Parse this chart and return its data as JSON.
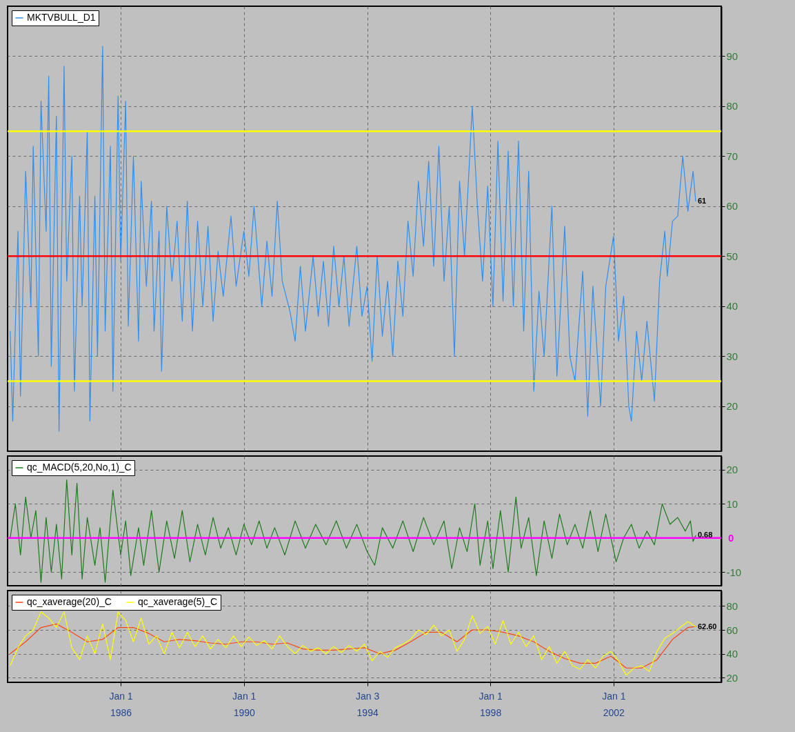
{
  "chart_data": [
    {
      "type": "line",
      "legend": "top left",
      "grid": true,
      "tick_labels": "y",
      "xlim": [
        "1982-05",
        "2005-07"
      ],
      "xticks": [
        {
          "value": "1986-01-01",
          "label": null
        },
        {
          "value": "1990-01-01",
          "label": null
        },
        {
          "value": "1994-01-03",
          "label": null
        },
        {
          "value": "1998-01-01",
          "label": null
        },
        {
          "value": "2002-01-01",
          "label": null
        }
      ],
      "ylim": [
        11,
        100
      ],
      "yticks": [
        20,
        30,
        40,
        50,
        60,
        70,
        80,
        90
      ],
      "ref_lines": [
        {
          "axis": "y",
          "value": 75,
          "color": "#ffff00"
        },
        {
          "axis": "y",
          "value": 50,
          "color": "#ff0000"
        },
        {
          "axis": "y",
          "value": 25,
          "color": "#ffff00"
        }
      ],
      "annotations": [
        {
          "text": "61",
          "x": "2004-09",
          "y": 61
        }
      ],
      "x": [
        "1982-06",
        "1982-07",
        "1982-09",
        "1982-10",
        "1982-12",
        "1983-02",
        "1983-03",
        "1983-05",
        "1983-06",
        "1983-08",
        "1983-09",
        "1983-10",
        "1983-12",
        "1984-01",
        "1984-03",
        "1984-04",
        "1984-06",
        "1984-07",
        "1984-09",
        "1984-10",
        "1984-12",
        "1985-01",
        "1985-03",
        "1985-04",
        "1985-06",
        "1985-07",
        "1985-09",
        "1985-10",
        "1985-12",
        "1986-01",
        "1986-03",
        "1986-04",
        "1986-06",
        "1986-08",
        "1986-09",
        "1986-11",
        "1987-01",
        "1987-02",
        "1987-04",
        "1987-05",
        "1987-07",
        "1987-09",
        "1987-11",
        "1988-01",
        "1988-03",
        "1988-05",
        "1988-07",
        "1988-09",
        "1988-11",
        "1989-01",
        "1989-03",
        "1989-05",
        "1989-08",
        "1989-10",
        "1990-01",
        "1990-03",
        "1990-05",
        "1990-08",
        "1990-10",
        "1990-12",
        "1991-02",
        "1991-04",
        "1991-07",
        "1991-09",
        "1991-11",
        "1992-01",
        "1992-04",
        "1992-06",
        "1992-08",
        "1992-10",
        "1992-12",
        "1993-02",
        "1993-04",
        "1993-06",
        "1993-09",
        "1993-11",
        "1994-01",
        "1994-03",
        "1994-05",
        "1994-07",
        "1994-09",
        "1994-11",
        "1995-01",
        "1995-03",
        "1995-05",
        "1995-07",
        "1995-09",
        "1995-11",
        "1996-01",
        "1996-03",
        "1996-05",
        "1996-07",
        "1996-09",
        "1996-11",
        "1997-01",
        "1997-03",
        "1997-06",
        "1997-08",
        "1997-10",
        "1997-12",
        "1998-02",
        "1998-04",
        "1998-06",
        "1998-08",
        "1998-10",
        "1998-12",
        "1999-02",
        "1999-04",
        "1999-06",
        "1999-08",
        "1999-10",
        "2000-01",
        "2000-03",
        "2000-06",
        "2000-08",
        "2000-10",
        "2001-01",
        "2001-03",
        "2001-05",
        "2001-08",
        "2001-10",
        "2002-01",
        "2002-03",
        "2002-05",
        "2002-07",
        "2002-08",
        "2002-10",
        "2002-12",
        "2003-02",
        "2003-05",
        "2003-07",
        "2003-09",
        "2003-10",
        "2003-12",
        "2004-02",
        "2004-04",
        "2004-06",
        "2004-08",
        "2004-09"
      ],
      "series": [
        {
          "name": "MKTVBULL_D1",
          "color": "#2f8ff0",
          "values": [
            35,
            17,
            55,
            22,
            67,
            40,
            72,
            30,
            81,
            55,
            86,
            28,
            78,
            15,
            88,
            45,
            70,
            23,
            62,
            40,
            75,
            17,
            62,
            30,
            92,
            35,
            72,
            23,
            82,
            49,
            81,
            36,
            70,
            33,
            65,
            44,
            61,
            35,
            55,
            27,
            60,
            45,
            57,
            37,
            61,
            35,
            57,
            40,
            56,
            37,
            51,
            42,
            58,
            44,
            55,
            46,
            60,
            40,
            53,
            42,
            61,
            45,
            39,
            33,
            48,
            35,
            50,
            38,
            49,
            36,
            52,
            40,
            50,
            36,
            52,
            38,
            44,
            29,
            50,
            34,
            45,
            30,
            49,
            38,
            57,
            46,
            65,
            52,
            69,
            48,
            72,
            45,
            60,
            30,
            65,
            50,
            80,
            60,
            45,
            64,
            40,
            73,
            41,
            71,
            40,
            73,
            35,
            67,
            23,
            43,
            30,
            60,
            26,
            56,
            30,
            25,
            47,
            18,
            44,
            20,
            44,
            54,
            33,
            42,
            20,
            17,
            35,
            25,
            37,
            21,
            45,
            55,
            46,
            57,
            58,
            70,
            59,
            67,
            61
          ]
        }
      ]
    },
    {
      "type": "line",
      "legend": "top left",
      "grid": true,
      "tick_labels": "y",
      "xlim": [
        "1982-05",
        "2005-07"
      ],
      "xticks": [
        {
          "value": "1986-01-01",
          "label": null
        },
        {
          "value": "1990-01-01",
          "label": null
        },
        {
          "value": "1994-01-03",
          "label": null
        },
        {
          "value": "1998-01-01",
          "label": null
        },
        {
          "value": "2002-01-01",
          "label": null
        }
      ],
      "ylim": [
        -14,
        24
      ],
      "yticks": [
        -10,
        10,
        20
      ],
      "ref_lines": [
        {
          "axis": "y",
          "value": 0,
          "label": "0",
          "color": "#ff00ff"
        }
      ],
      "annotations": [
        {
          "text": "0.68",
          "x": "2004-09",
          "y": 0.68
        }
      ],
      "x": [
        "1982-06",
        "1982-08",
        "1982-10",
        "1982-12",
        "1983-02",
        "1983-04",
        "1983-06",
        "1983-08",
        "1983-10",
        "1983-12",
        "1984-02",
        "1984-04",
        "1984-06",
        "1984-08",
        "1984-10",
        "1984-12",
        "1985-03",
        "1985-05",
        "1985-07",
        "1985-10",
        "1986-01",
        "1986-03",
        "1986-05",
        "1986-08",
        "1986-10",
        "1987-01",
        "1987-04",
        "1987-07",
        "1987-10",
        "1988-01",
        "1988-04",
        "1988-07",
        "1988-10",
        "1989-01",
        "1989-04",
        "1989-07",
        "1989-10",
        "1990-01",
        "1990-04",
        "1990-07",
        "1990-10",
        "1991-01",
        "1991-05",
        "1991-09",
        "1992-01",
        "1992-05",
        "1992-09",
        "1993-01",
        "1993-05",
        "1993-09",
        "1994-01",
        "1994-04",
        "1994-07",
        "1994-11",
        "1995-03",
        "1995-07",
        "1995-11",
        "1996-03",
        "1996-07",
        "1996-10",
        "1997-01",
        "1997-04",
        "1997-07",
        "1997-09",
        "1997-12",
        "1998-02",
        "1998-05",
        "1998-08",
        "1998-11",
        "1999-01",
        "1999-04",
        "1999-07",
        "1999-10",
        "2000-01",
        "2000-04",
        "2000-07",
        "2000-10",
        "2001-01",
        "2001-04",
        "2001-07",
        "2001-10",
        "2002-02",
        "2002-05",
        "2002-08",
        "2002-11",
        "2003-02",
        "2003-05",
        "2003-08",
        "2003-11",
        "2004-02",
        "2004-05",
        "2004-07",
        "2004-08",
        "2004-09"
      ],
      "series": [
        {
          "name": "qc_MACD(5,20,No,1)_C",
          "color": "#1d7a1d",
          "values": [
            0,
            10,
            -5,
            12,
            0,
            8,
            -13,
            6,
            -10,
            4,
            -12,
            17,
            -5,
            16,
            -12,
            6,
            -8,
            3,
            -13,
            14,
            -5,
            5,
            -11,
            3,
            -8,
            8,
            -10,
            5,
            -6,
            8,
            -7,
            4,
            -5,
            6,
            -3,
            3,
            -5,
            4,
            -2,
            5,
            -3,
            3,
            -5,
            5,
            -3,
            4,
            -2,
            5,
            -3,
            4,
            -4,
            -8,
            3,
            -3,
            5,
            -4,
            6,
            -2,
            5,
            -9,
            3,
            -4,
            10,
            -8,
            5,
            -9,
            8,
            -10,
            12,
            -3,
            6,
            -11,
            5,
            -6,
            7,
            -2,
            4,
            -3,
            8,
            -4,
            7,
            -7,
            0,
            4,
            -3,
            2,
            -2,
            10,
            4,
            6,
            2,
            5,
            -1,
            0.68
          ]
        }
      ]
    },
    {
      "type": "line",
      "legend": "top left",
      "grid": true,
      "xlim": [
        "1982-05",
        "2005-07"
      ],
      "xticks": [
        {
          "value": "1986-01-01",
          "label": "Jan 1\n1986"
        },
        {
          "value": "1990-01-01",
          "label": "Jan 1\n1990"
        },
        {
          "value": "1994-01-03",
          "label": "Jan 3\n1994"
        },
        {
          "value": "1998-01-01",
          "label": "Jan 1\n1998"
        },
        {
          "value": "2002-01-01",
          "label": "Jan 1\n2002"
        }
      ],
      "ylim": [
        16,
        93
      ],
      "yticks": [
        20,
        40,
        60,
        80
      ],
      "annotations": [
        {
          "text": "62.60",
          "x": "2004-09",
          "y": 62.6
        }
      ],
      "series": [
        {
          "name": "qc_xaverage(20)_C",
          "color": "#ff4411",
          "x": [
            "1982-06",
            "1982-12",
            "1983-06",
            "1983-12",
            "1984-06",
            "1984-12",
            "1985-06",
            "1985-12",
            "1986-06",
            "1986-12",
            "1987-06",
            "1987-12",
            "1988-06",
            "1988-12",
            "1989-06",
            "1989-12",
            "1990-06",
            "1990-12",
            "1991-06",
            "1991-12",
            "1992-06",
            "1992-12",
            "1993-06",
            "1993-12",
            "1994-06",
            "1994-12",
            "1995-06",
            "1995-12",
            "1996-06",
            "1996-12",
            "1997-06",
            "1997-12",
            "1998-06",
            "1998-12",
            "1999-06",
            "1999-12",
            "2000-06",
            "2000-12",
            "2001-06",
            "2001-12",
            "2002-06",
            "2002-12",
            "2003-06",
            "2003-12",
            "2004-06",
            "2004-09"
          ],
          "values": [
            40,
            50,
            62,
            65,
            58,
            50,
            52,
            62,
            62,
            57,
            50,
            52,
            51,
            49,
            48,
            50,
            50,
            48,
            49,
            44,
            43,
            43,
            44,
            45,
            40,
            43,
            50,
            58,
            58,
            50,
            60,
            60,
            58,
            55,
            50,
            42,
            36,
            32,
            32,
            38,
            28,
            28,
            35,
            52,
            62,
            63
          ]
        },
        {
          "name": "qc_xaverage(5)_C",
          "color": "#ffff00",
          "x": [
            "1982-06",
            "1982-09",
            "1982-12",
            "1983-03",
            "1983-06",
            "1983-09",
            "1983-12",
            "1984-03",
            "1984-06",
            "1984-09",
            "1984-12",
            "1985-03",
            "1985-06",
            "1985-09",
            "1985-12",
            "1986-03",
            "1986-06",
            "1986-09",
            "1986-12",
            "1987-03",
            "1987-06",
            "1987-09",
            "1987-12",
            "1988-03",
            "1988-06",
            "1988-09",
            "1988-12",
            "1989-03",
            "1989-06",
            "1989-09",
            "1989-12",
            "1990-03",
            "1990-06",
            "1990-09",
            "1990-12",
            "1991-03",
            "1991-06",
            "1991-09",
            "1991-12",
            "1992-03",
            "1992-06",
            "1992-09",
            "1992-12",
            "1993-03",
            "1993-06",
            "1993-09",
            "1993-12",
            "1994-03",
            "1994-06",
            "1994-09",
            "1994-12",
            "1995-03",
            "1995-06",
            "1995-09",
            "1995-12",
            "1996-03",
            "1996-06",
            "1996-09",
            "1996-12",
            "1997-03",
            "1997-06",
            "1997-09",
            "1997-12",
            "1998-03",
            "1998-06",
            "1998-09",
            "1998-12",
            "1999-03",
            "1999-06",
            "1999-09",
            "1999-12",
            "2000-03",
            "2000-06",
            "2000-09",
            "2000-12",
            "2001-03",
            "2001-06",
            "2001-09",
            "2001-12",
            "2002-03",
            "2002-06",
            "2002-09",
            "2002-12",
            "2003-03",
            "2003-06",
            "2003-09",
            "2003-12",
            "2004-03",
            "2004-06",
            "2004-09"
          ],
          "values": [
            30,
            45,
            55,
            60,
            75,
            70,
            62,
            75,
            45,
            35,
            55,
            40,
            65,
            35,
            75,
            68,
            50,
            70,
            48,
            55,
            40,
            58,
            45,
            58,
            46,
            55,
            44,
            52,
            45,
            55,
            46,
            54,
            47,
            51,
            44,
            55,
            46,
            40,
            47,
            42,
            45,
            40,
            46,
            41,
            47,
            42,
            48,
            34,
            42,
            37,
            45,
            48,
            52,
            60,
            56,
            64,
            55,
            60,
            42,
            52,
            72,
            57,
            63,
            48,
            68,
            48,
            58,
            46,
            55,
            35,
            46,
            32,
            42,
            30,
            27,
            35,
            28,
            38,
            42,
            34,
            22,
            28,
            30,
            25,
            42,
            53,
            57,
            62,
            67,
            62.6
          ]
        }
      ]
    }
  ]
}
